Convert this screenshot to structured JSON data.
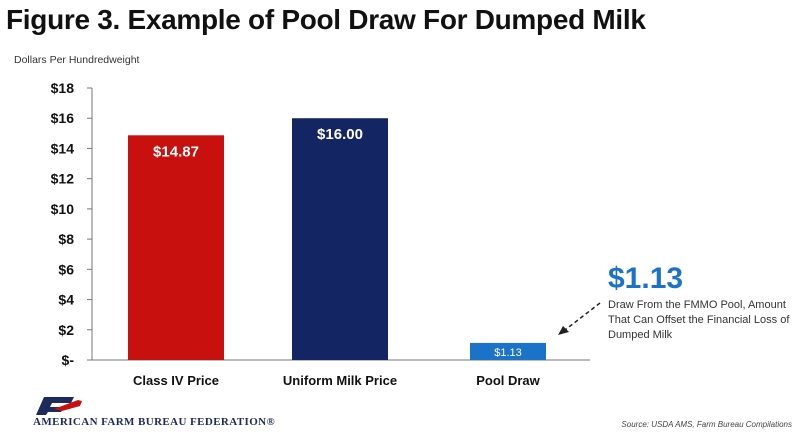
{
  "title": "Figure 3. Example of Pool Draw For Dumped Milk",
  "chart_data": {
    "type": "bar",
    "title": "Figure 3. Example of Pool Draw For Dumped Milk",
    "ylabel": "Dollars Per Hundredweight",
    "xlabel": "",
    "ylim": [
      0,
      18
    ],
    "yticks": [
      0,
      2,
      4,
      6,
      8,
      10,
      12,
      14,
      16,
      18
    ],
    "ytick_labels": [
      "$-",
      "$2",
      "$4",
      "$6",
      "$8",
      "$10",
      "$12",
      "$14",
      "$16",
      "$18"
    ],
    "categories": [
      "Class IV Price",
      "Uniform Milk Price",
      "Pool Draw"
    ],
    "values": [
      14.87,
      16.0,
      1.13
    ],
    "data_labels": [
      "$14.87",
      "$16.00",
      "$1.13"
    ],
    "colors": [
      "#c8100e",
      "#142563",
      "#1a73c8"
    ],
    "grid": false,
    "legend": "none"
  },
  "callout": {
    "value": "$1.13",
    "text": "Draw From the FMMO Pool, Amount That Can Offset the Financial Loss of Dumped Milk",
    "color": "#1a73c8"
  },
  "footer": {
    "org": "AMERICAN FARM BUREAU FEDERATION®",
    "source": "Source: USDA AMS, Farm Bureau Compilations",
    "logo_icon": "fb-logo-icon"
  }
}
